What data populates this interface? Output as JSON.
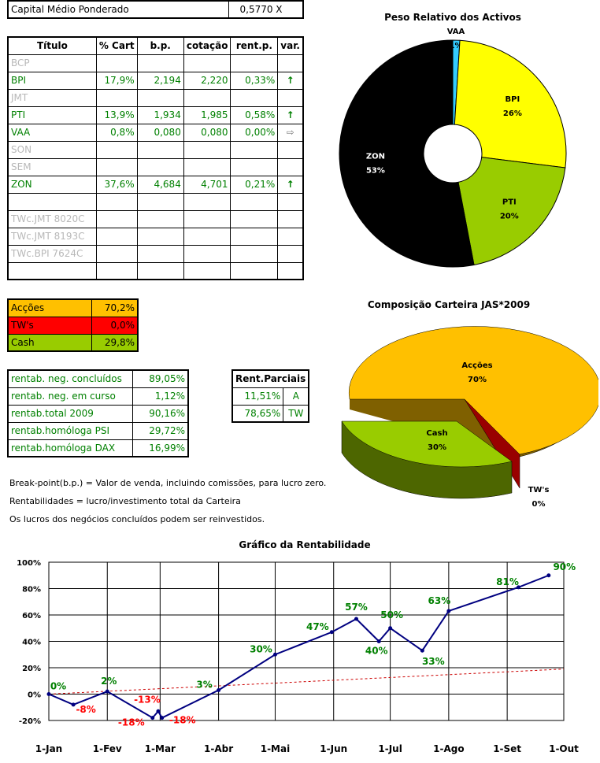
{
  "capital": {
    "label": "Capital Médio Ponderado",
    "value": "0,5770 X"
  },
  "table": {
    "headers": [
      "Título",
      "% Cart",
      "b.p.",
      "cotação",
      "rent.p.",
      "var."
    ],
    "rows": [
      {
        "titulo": "BCP",
        "muted": true
      },
      {
        "titulo": "BPI",
        "cart": "17,9%",
        "bp": "2,194",
        "cotacao": "2,220",
        "rent": "0,33%",
        "var": "up"
      },
      {
        "titulo": "JMT",
        "muted": true
      },
      {
        "titulo": "PTI",
        "cart": "13,9%",
        "bp": "1,934",
        "cotacao": "1,985",
        "rent": "0,58%",
        "var": "up"
      },
      {
        "titulo": "VAA",
        "cart": "0,8%",
        "bp": "0,080",
        "cotacao": "0,080",
        "rent": "0,00%",
        "var": "flat"
      },
      {
        "titulo": "SON",
        "muted": true
      },
      {
        "titulo": "SEM",
        "muted": true
      },
      {
        "titulo": "ZON",
        "cart": "37,6%",
        "bp": "4,684",
        "cotacao": "4,701",
        "rent": "0,21%",
        "var": "up"
      },
      {
        "titulo": "",
        "muted": true
      },
      {
        "titulo": "TWc.JMT 8020C",
        "muted": true
      },
      {
        "titulo": "TWc.JMT 8193C",
        "muted": true
      },
      {
        "titulo": "TWc.BPI 7624C",
        "muted": true
      },
      {
        "titulo": "",
        "muted": true
      }
    ]
  },
  "composition": [
    {
      "label": "Acções",
      "value": "70,2%",
      "color": "#ffc000",
      "text_color": "#000000"
    },
    {
      "label": "TW's",
      "value": "0,0%",
      "color": "#ff0000",
      "text_color": "#000000"
    },
    {
      "label": "Cash",
      "value": "29,8%",
      "color": "#99cc00",
      "text_color": "#000000"
    }
  ],
  "rentab": [
    {
      "label": "rentab. neg. concluídos",
      "value": "89,05%"
    },
    {
      "label": "rentab. neg. em curso",
      "value": "1,12%"
    },
    {
      "label": "rentab.total 2009",
      "value": "90,16%"
    },
    {
      "label": "rentab.homóloga PSI",
      "value": "29,72%"
    },
    {
      "label": "rentab.homóloga DAX",
      "value": "16,99%"
    }
  ],
  "parciais": {
    "header": "Rent.Parciais",
    "rows": [
      {
        "value": "11,51%",
        "tag": "A"
      },
      {
        "value": "78,65%",
        "tag": "TW"
      }
    ]
  },
  "notes": [
    "Break-point(b.p.) = Valor de venda, incluindo comissões, para lucro zero.",
    "Rentabilidades = lucro/investimento total da Carteira",
    "Os lucros dos negócios concluídos podem ser reinvestidos."
  ],
  "chart_data": [
    {
      "type": "pie",
      "title": "Peso Relativo dos Activos",
      "variant": "doughnut",
      "slices": [
        {
          "label": "VAA",
          "value": 1,
          "display": "1%",
          "color": "#33ccff"
        },
        {
          "label": "BPI",
          "value": 26,
          "display": "26%",
          "color": "#ffff00"
        },
        {
          "label": "PTI",
          "value": 20,
          "display": "20%",
          "color": "#99cc00"
        },
        {
          "label": "ZON",
          "value": 53,
          "display": "53%",
          "color": "#000000"
        }
      ]
    },
    {
      "type": "pie",
      "title": "Composição Carteira JAS*2009",
      "variant": "3d",
      "slices": [
        {
          "label": "Acções",
          "value": 70,
          "display": "70%",
          "color": "#ffc000"
        },
        {
          "label": "TW's",
          "value": 0,
          "display": "0%",
          "color": "#cc0000"
        },
        {
          "label": "Cash",
          "value": 30,
          "display": "30%",
          "color": "#99cc00"
        }
      ]
    },
    {
      "type": "line",
      "title": "Gráfico da Rentabilidade",
      "xlabel": "",
      "ylabel": "",
      "x_ticks": [
        "1-Jan",
        "1-Fev",
        "1-Mar",
        "1-Abr",
        "1-Mai",
        "1-Jun",
        "1-Jul",
        "1-Ago",
        "1-Set",
        "1-Out"
      ],
      "y_ticks": [
        "100%",
        "80%",
        "60%",
        "40%",
        "20%",
        "0%",
        "-20%"
      ],
      "ylim": [
        -20,
        100
      ],
      "grid": true,
      "series": [
        {
          "color": "#000080",
          "points": [
            {
              "x": "2009-01-01",
              "y": 0,
              "label": "0%",
              "label_color": "#008000"
            },
            {
              "x": "2009-01-14",
              "y": -8,
              "label": "-8%",
              "label_color": "#ff0000"
            },
            {
              "x": "2009-02-01",
              "y": 2,
              "label": "2%",
              "label_color": "#008000"
            },
            {
              "x": "2009-02-25",
              "y": -18,
              "label": "-18%",
              "label_color": "#ff0000"
            },
            {
              "x": "2009-02-28",
              "y": -13,
              "label": "-13%",
              "label_color": "#ff0000"
            },
            {
              "x": "2009-03-02",
              "y": -18,
              "label": "-18%",
              "label_color": "#ff0000"
            },
            {
              "x": "2009-04-01",
              "y": 3,
              "label": "3%",
              "label_color": "#008000"
            },
            {
              "x": "2009-05-01",
              "y": 30,
              "label": "30%",
              "label_color": "#008000"
            },
            {
              "x": "2009-05-31",
              "y": 47,
              "label": "47%",
              "label_color": "#008000"
            },
            {
              "x": "2009-06-13",
              "y": 57,
              "label": "57%",
              "label_color": "#008000"
            },
            {
              "x": "2009-06-25",
              "y": 40,
              "label": "40%",
              "label_color": "#008000"
            },
            {
              "x": "2009-07-01",
              "y": 50,
              "label": "50%",
              "label_color": "#008000"
            },
            {
              "x": "2009-07-18",
              "y": 33,
              "label": "33%",
              "label_color": "#008000"
            },
            {
              "x": "2009-08-01",
              "y": 63,
              "label": "63%",
              "label_color": "#008000"
            },
            {
              "x": "2009-09-07",
              "y": 81,
              "label": "81%",
              "label_color": "#008000"
            },
            {
              "x": "2009-09-23",
              "y": 90,
              "label": "90%",
              "label_color": "#008000"
            }
          ]
        },
        {
          "color": "#cc0000",
          "dashed": true,
          "points": [
            {
              "x": "2009-01-01",
              "y": 0
            },
            {
              "x": "2009-10-01",
              "y": 19
            }
          ]
        }
      ]
    }
  ]
}
